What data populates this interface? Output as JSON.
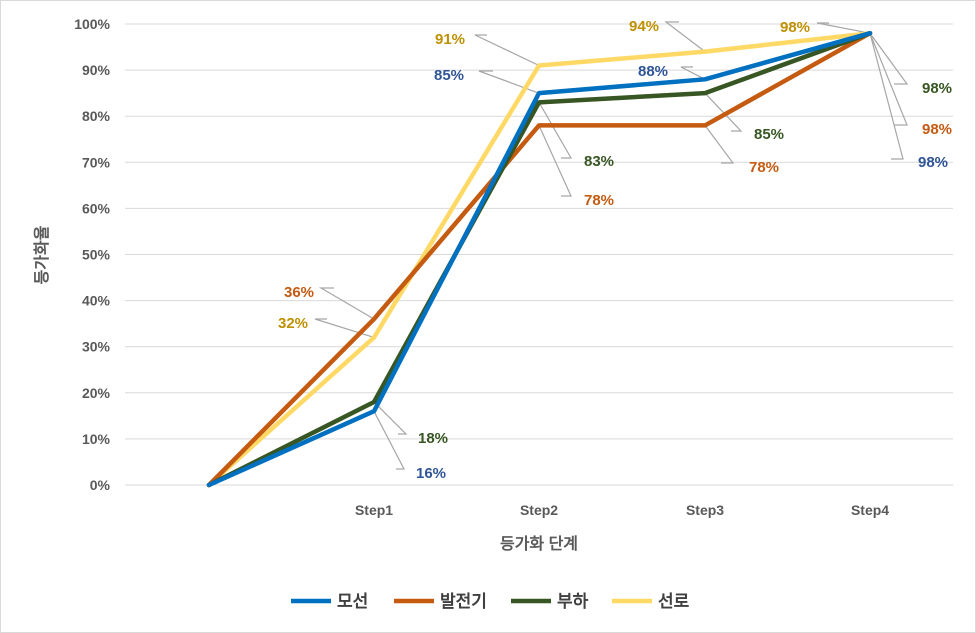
{
  "chart_data": {
    "type": "line",
    "title": "",
    "xlabel": "등가화 단계",
    "ylabel": "등가화율",
    "categories": [
      "",
      "Step1",
      "Step2",
      "Step3",
      "Step4"
    ],
    "y_ticks": [
      "0%",
      "10%",
      "20%",
      "30%",
      "40%",
      "50%",
      "60%",
      "70%",
      "80%",
      "90%",
      "100%"
    ],
    "ylim": [
      0,
      100
    ],
    "grid": true,
    "legend_position": "bottom",
    "series": [
      {
        "name": "모선",
        "color": "#0070C0",
        "values": [
          0,
          16,
          85,
          88,
          98
        ],
        "labels": [
          "",
          "16%",
          "85%",
          "88%",
          "98%"
        ]
      },
      {
        "name": "발전기",
        "color": "#C55A11",
        "values": [
          0,
          36,
          78,
          78,
          98
        ],
        "labels": [
          "",
          "36%",
          "78%",
          "78%",
          "98%"
        ]
      },
      {
        "name": "부하",
        "color": "#375623",
        "values": [
          0,
          18,
          83,
          85,
          98
        ],
        "labels": [
          "",
          "18%",
          "83%",
          "85%",
          "98%"
        ]
      },
      {
        "name": "선로",
        "color": "#FFD966",
        "values": [
          0,
          32,
          91,
          94,
          98
        ],
        "labels": [
          "",
          "32%",
          "91%",
          "94%",
          "98%"
        ]
      }
    ],
    "label_colors": {
      "모선": "#2F5597",
      "발전기": "#C55A11",
      "부하": "#375623",
      "선로": "#BF9000"
    }
  }
}
